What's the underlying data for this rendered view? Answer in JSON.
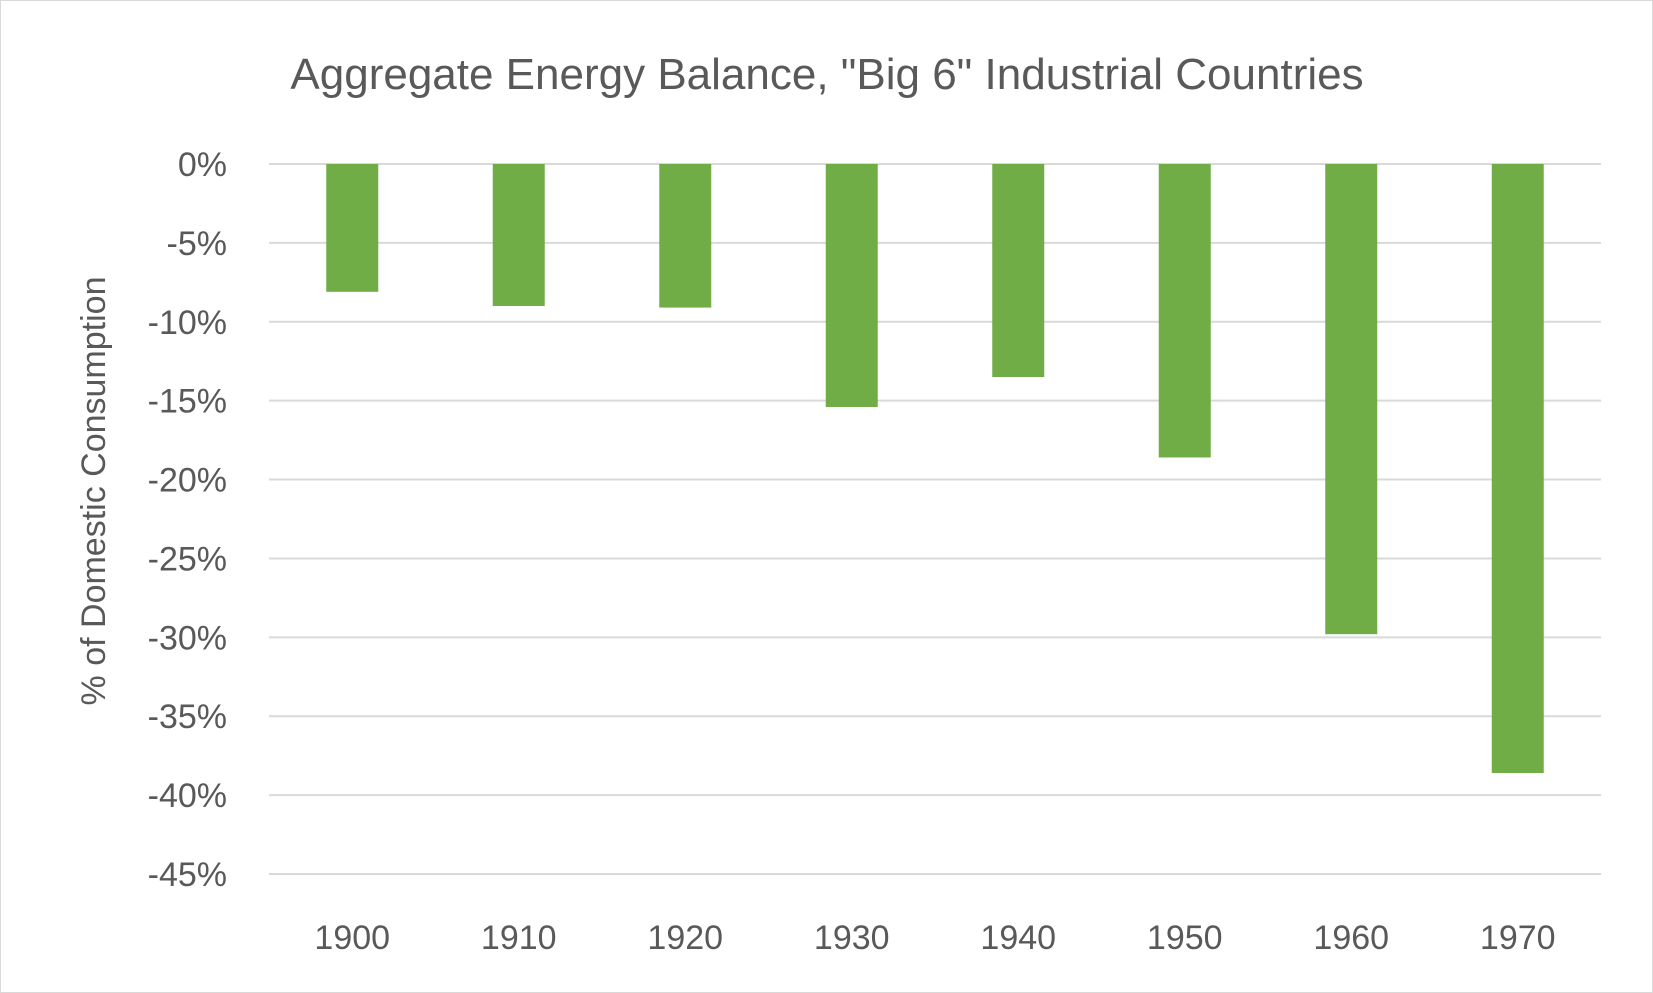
{
  "chart_data": {
    "type": "bar",
    "title": "Aggregate Energy Balance, \"Big 6\" Industrial Countries",
    "xlabel": "",
    "ylabel": "% of Domestic Consumption",
    "categories": [
      "1900",
      "1910",
      "1920",
      "1930",
      "1940",
      "1950",
      "1960",
      "1970"
    ],
    "values": [
      -8.1,
      -9.0,
      -9.1,
      -15.4,
      -13.5,
      -18.6,
      -29.8,
      -38.6
    ],
    "y_ticks": [
      0,
      -5,
      -10,
      -15,
      -20,
      -25,
      -30,
      -35,
      -40,
      -45
    ],
    "y_tick_labels": [
      "0%",
      "-5%",
      "-10%",
      "-15%",
      "-20%",
      "-25%",
      "-30%",
      "-35%",
      "-40%",
      "-45%"
    ],
    "ylim": [
      -45,
      0
    ],
    "grid": true,
    "legend": "none",
    "bar_color": "#70ad47"
  }
}
